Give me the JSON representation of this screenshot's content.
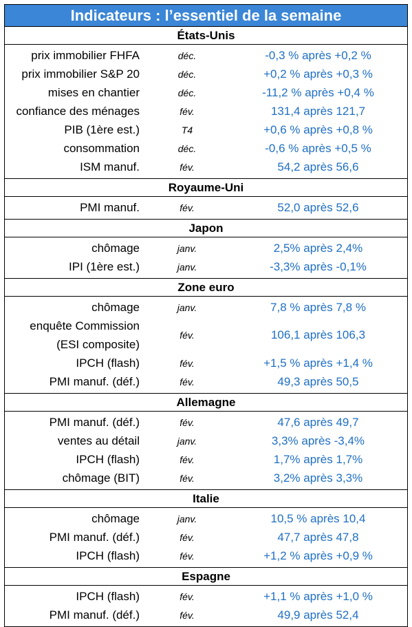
{
  "title": "Indicateurs : l’essentiel de la semaine",
  "sections": [
    {
      "name": "États-Unis",
      "rows": [
        {
          "label": "prix immobilier FHFA",
          "period": "déc.",
          "value": "-0,3 % après +0,2 %"
        },
        {
          "label": "prix immobilier S&P 20",
          "period": "déc.",
          "value": "+0,2 % après +0,3 %"
        },
        {
          "label": "mises en chantier",
          "period": "déc.",
          "value": "-11,2 % après +0,4 %"
        },
        {
          "label": "confiance des ménages",
          "period": "fév.",
          "value": "131,4 après 121,7"
        },
        {
          "label": "PIB (1ère est.)",
          "period": "T4",
          "value": "+0,6 % après +0,8 %"
        },
        {
          "label": "consommation",
          "period": "déc.",
          "value": "-0,6 % après +0,5 %"
        },
        {
          "label": "ISM manuf.",
          "period": "fév.",
          "value": "54,2 après 56,6"
        }
      ]
    },
    {
      "name": "Royaume-Uni",
      "rows": [
        {
          "label": "PMI manuf.",
          "period": "fév.",
          "value": "52,0 après 52,6"
        }
      ]
    },
    {
      "name": "Japon",
      "rows": [
        {
          "label": "chômage",
          "period": "janv.",
          "value": "2,5% après 2,4%"
        },
        {
          "label": "IPI (1ère est.)",
          "period": "janv.",
          "value": "-3,3% après -0,1%"
        }
      ]
    },
    {
      "name": "Zone euro",
      "rows": [
        {
          "label": "chômage",
          "period": "janv.",
          "value": "7,8 % après 7,8 %"
        },
        {
          "label": "enquête Commission",
          "label2": "(ESI composite)",
          "period": "fév.",
          "value": "106,1 après 106,3"
        },
        {
          "label": "IPCH (flash)",
          "period": "fév.",
          "value": "+1,5 % après +1,4 %"
        },
        {
          "label": "PMI manuf. (déf.)",
          "period": "fév.",
          "value": "49,3 après 50,5"
        }
      ]
    },
    {
      "name": "Allemagne",
      "rows": [
        {
          "label": "PMI manuf. (déf.)",
          "period": "fév.",
          "value": "47,6 après 49,7"
        },
        {
          "label": "ventes au détail",
          "period": "janv.",
          "value": "3,3% après -3,4%"
        },
        {
          "label": "IPCH (flash)",
          "period": "fév.",
          "value": "1,7% après 1,7%"
        },
        {
          "label": "chômage (BIT)",
          "period": "fév.",
          "value": "3,2% après 3,3%"
        }
      ]
    },
    {
      "name": "Italie",
      "rows": [
        {
          "label": "chômage",
          "period": "janv.",
          "value": "10,5 % après 10,4"
        },
        {
          "label": "PMI manuf. (déf.)",
          "period": "fév.",
          "value": "47,7 après 47,8"
        },
        {
          "label": "IPCH (flash)",
          "period": "fév.",
          "value": "+1,2 % après +0,9 %"
        }
      ]
    },
    {
      "name": "Espagne",
      "rows": [
        {
          "label": "IPCH (flash)",
          "period": "fév.",
          "value": "+1,1 % après +1,0 %"
        },
        {
          "label": "PMI manuf. (déf.)",
          "period": "fév.",
          "value": "49,9 après 52,4"
        }
      ]
    }
  ]
}
